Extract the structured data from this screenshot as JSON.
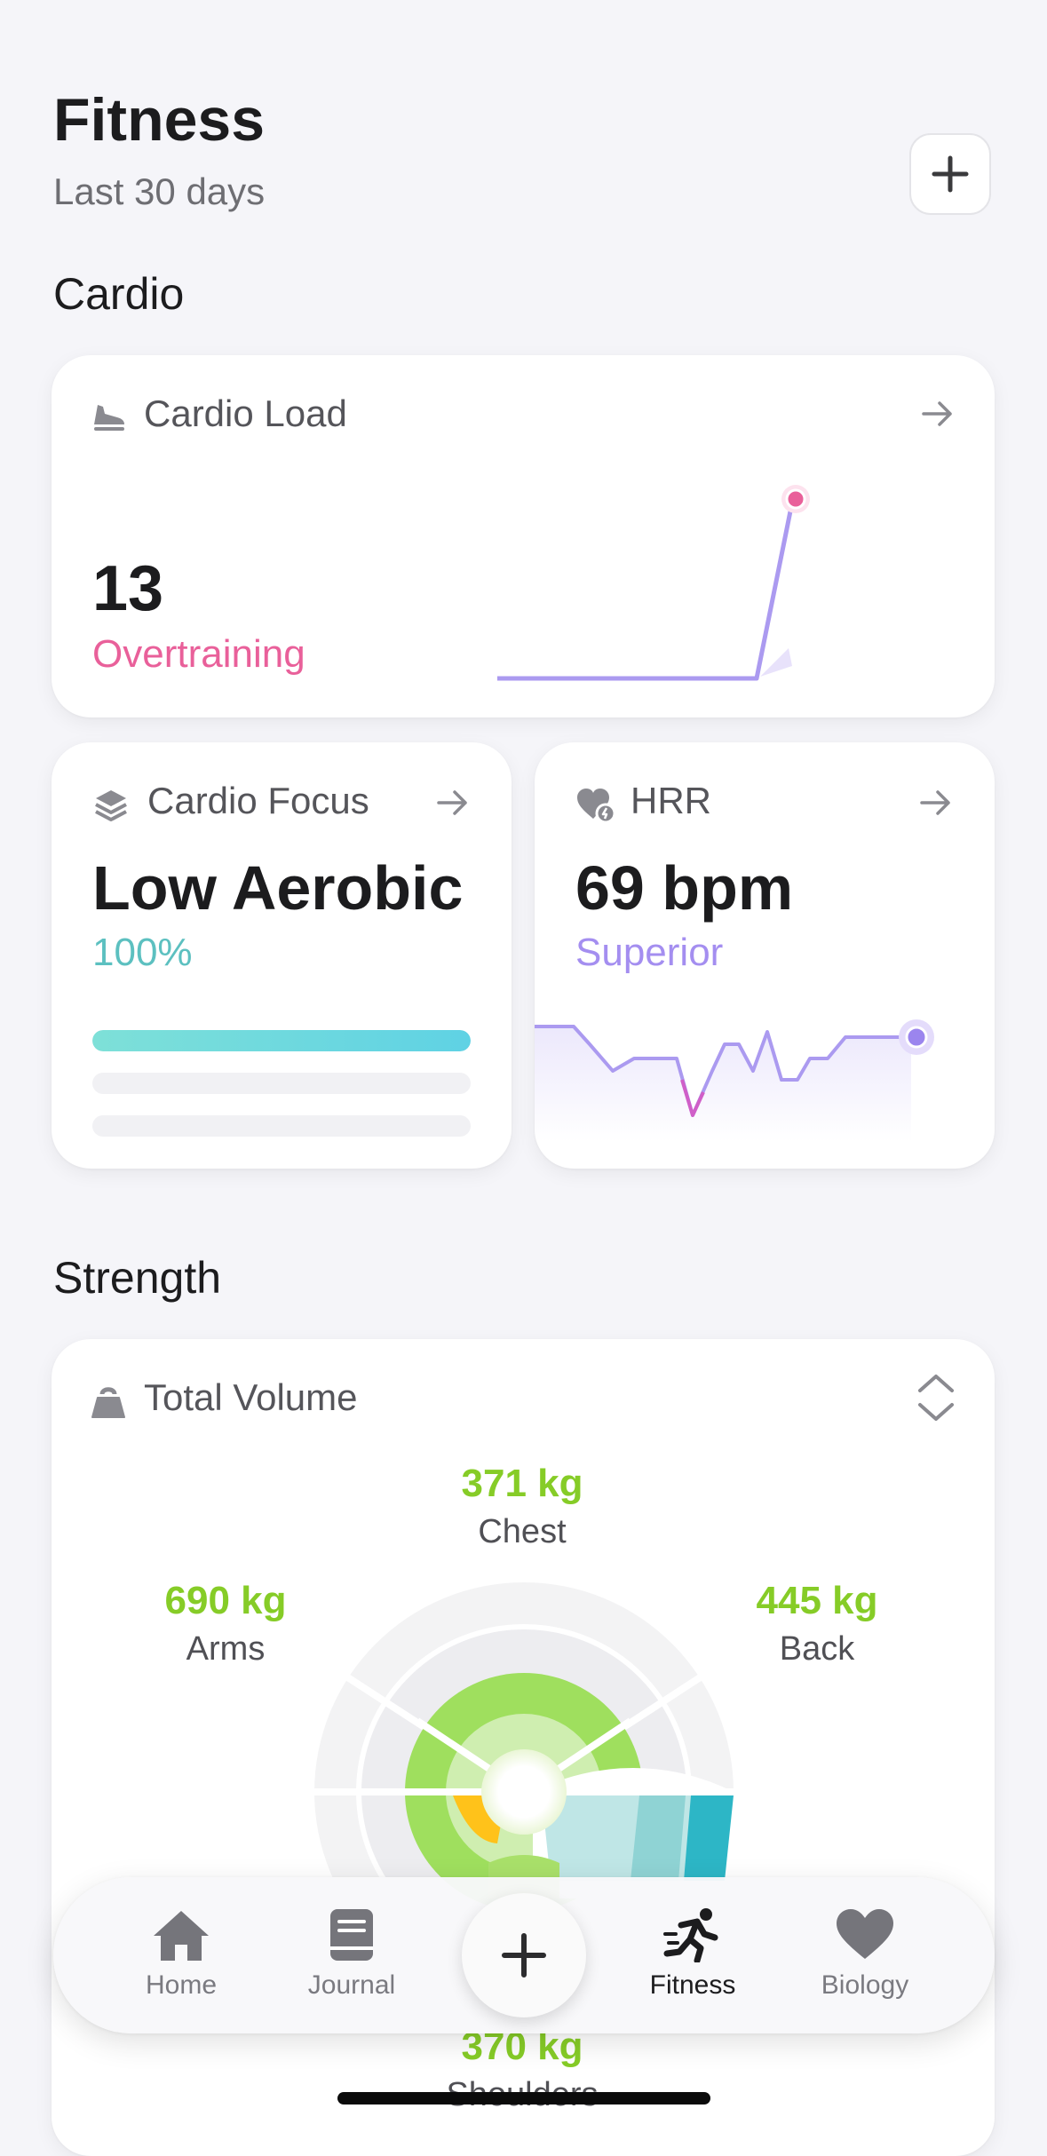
{
  "header": {
    "title": "Fitness",
    "subtitle": "Last 30 days",
    "add_label": "+"
  },
  "sections": {
    "cardio": "Cardio",
    "strength": "Strength"
  },
  "cardio_load": {
    "title": "Cardio Load",
    "value": "13",
    "status": "Overtraining",
    "status_color": "#e9609a",
    "line_color": "#ab9af0"
  },
  "cardio_focus": {
    "title": "Cardio Focus",
    "value": "Low Aerobic",
    "percent": "100%",
    "percent_color": "#5cc0c0",
    "bars": [
      1.0,
      0.0,
      0.0
    ]
  },
  "hrr": {
    "title": "HRR",
    "value": "69 bpm",
    "status": "Superior",
    "status_color": "#a48ef0"
  },
  "total_volume": {
    "title": "Total Volume",
    "muscles": [
      {
        "value": "371 kg",
        "label": "Chest"
      },
      {
        "value": "690 kg",
        "label": "Arms"
      },
      {
        "value": "445 kg",
        "label": "Back"
      },
      {
        "value": "370 kg",
        "label": "Shoulders"
      }
    ],
    "value_color": "#86cc27"
  },
  "tabbar": {
    "items": [
      {
        "label": "Home",
        "icon": "home-icon"
      },
      {
        "label": "Journal",
        "icon": "journal-icon"
      },
      {
        "label": "Fitness",
        "icon": "running-icon",
        "active": true
      },
      {
        "label": "Biology",
        "icon": "heart-icon"
      }
    ],
    "center_label": "+"
  }
}
